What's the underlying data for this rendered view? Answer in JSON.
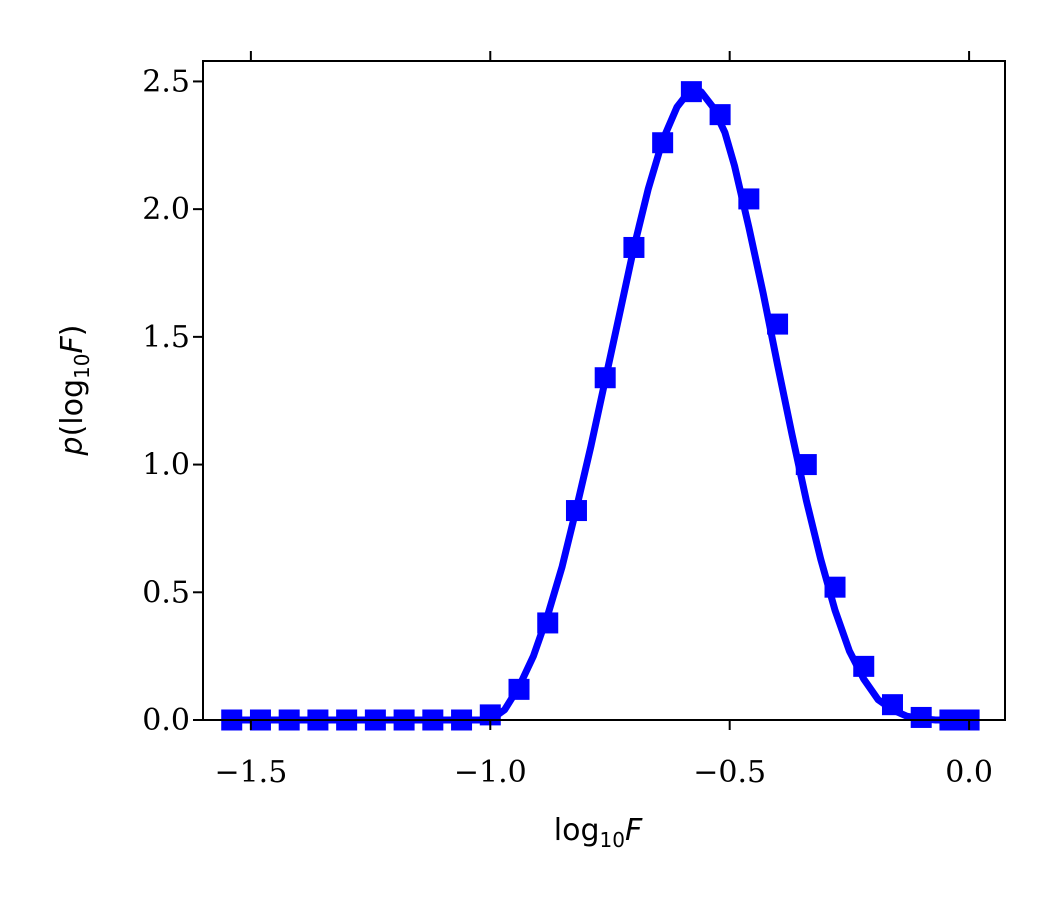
{
  "chart_data": {
    "type": "line",
    "xlabel_parts": {
      "base": "log",
      "sub": "10",
      "var": "F"
    },
    "ylabel_parts": {
      "p": "p",
      "open": "(log",
      "sub": "10",
      "var": "F",
      "close": ")"
    },
    "xlim": [
      -1.6,
      0.075
    ],
    "ylim": [
      0.0,
      2.58
    ],
    "xticks": [
      -1.5,
      -1.0,
      -0.5,
      0.0
    ],
    "xtick_labels": [
      "−1.5",
      "−1.0",
      "−0.5",
      "0.0"
    ],
    "yticks": [
      0.0,
      0.5,
      1.0,
      1.5,
      2.0,
      2.5
    ],
    "ytick_labels": [
      "0.0",
      "0.5",
      "1.0",
      "1.5",
      "2.0",
      "2.5"
    ],
    "grid": false,
    "color": "#0000ff",
    "series": [
      {
        "kind": "markers",
        "marker": "square",
        "x": [
          -1.54,
          -1.48,
          -1.42,
          -1.36,
          -1.3,
          -1.24,
          -1.18,
          -1.12,
          -1.06,
          -1.0,
          -0.94,
          -0.88,
          -0.82,
          -0.76,
          -0.7,
          -0.64,
          -0.58,
          -0.52,
          -0.46,
          -0.4,
          -0.34,
          -0.28,
          -0.22,
          -0.16,
          -0.1,
          -0.04,
          0.0
        ],
        "y": [
          0.0,
          0.0,
          0.0,
          0.0,
          0.0,
          0.0,
          0.0,
          0.0,
          0.0,
          0.02,
          0.12,
          0.38,
          0.82,
          1.34,
          1.85,
          2.26,
          2.46,
          2.37,
          2.04,
          1.55,
          1.0,
          0.52,
          0.21,
          0.06,
          0.01,
          0.0,
          0.0
        ]
      },
      {
        "kind": "line",
        "x": [
          -1.54,
          -1.4,
          -1.2,
          -1.0,
          -0.97,
          -0.94,
          -0.91,
          -0.88,
          -0.85,
          -0.82,
          -0.79,
          -0.76,
          -0.73,
          -0.7,
          -0.67,
          -0.64,
          -0.61,
          -0.585,
          -0.56,
          -0.535,
          -0.51,
          -0.49,
          -0.46,
          -0.43,
          -0.4,
          -0.37,
          -0.34,
          -0.31,
          -0.28,
          -0.25,
          -0.22,
          -0.19,
          -0.16,
          -0.13,
          -0.1,
          -0.07,
          -0.04,
          0.0
        ],
        "y": [
          0.0,
          0.0,
          0.0,
          0.0,
          0.04,
          0.13,
          0.25,
          0.41,
          0.6,
          0.83,
          1.07,
          1.33,
          1.59,
          1.85,
          2.08,
          2.27,
          2.4,
          2.46,
          2.46,
          2.4,
          2.3,
          2.17,
          1.93,
          1.67,
          1.39,
          1.12,
          0.86,
          0.63,
          0.43,
          0.27,
          0.16,
          0.08,
          0.04,
          0.015,
          0.005,
          0.0,
          0.0,
          0.0
        ]
      }
    ]
  }
}
